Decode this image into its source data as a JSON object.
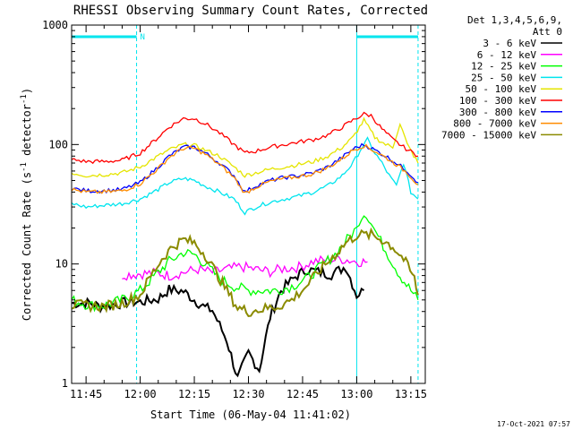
{
  "chart_data": {
    "type": "line",
    "title": "RHESSI Observing Summary Count Rates, Corrected",
    "ylabel_prefix": "Corrected Count Rate (s",
    "ylabel_sup1": "-1",
    "ylabel_mid": " detector",
    "ylabel_sup2": "-1",
    "ylabel_suffix": ")",
    "xlabel": "Start Time (06-May-04 11:41:02)",
    "footer_date": "17-Oct-2021 07:57",
    "legend_header": [
      "Det 1,3,4,5,6,9,",
      "Att 0"
    ],
    "y_scale": "log",
    "ylim": [
      1,
      1000
    ],
    "y_ticks": [
      1,
      10,
      100,
      1000
    ],
    "y_tick_labels": [
      "1",
      "10",
      "100",
      "1000"
    ],
    "xlim": [
      "11:41",
      "13:19"
    ],
    "x_ticks": [
      "11:45",
      "12:00",
      "12:15",
      "12:30",
      "12:45",
      "13:00",
      "13:15"
    ],
    "grid": false,
    "legend_position": "right",
    "annotations": {
      "bar_label": "N",
      "bar_color": "#00e5ee",
      "vlines_solid": [
        "11:41",
        "13:00"
      ],
      "vlines_dashed": [
        "11:59",
        "13:17"
      ],
      "bars": [
        [
          "11:41",
          "11:59"
        ],
        [
          "13:00",
          "13:17"
        ]
      ]
    },
    "series": [
      {
        "name": "3 - 6 keV",
        "color": "#000000",
        "points": [
          [
            "11:41",
            4.7
          ],
          [
            "11:46",
            4.7
          ],
          [
            "11:49",
            4.4
          ],
          [
            "11:53",
            4.6
          ],
          [
            "11:57",
            4.8
          ],
          [
            "12:00",
            4.8
          ],
          [
            "12:05",
            5.1
          ],
          [
            "12:08",
            6.1
          ],
          [
            "12:12",
            5.9
          ],
          [
            "12:15",
            5.0
          ],
          [
            "12:18",
            4.3
          ],
          [
            "12:20",
            4.1
          ],
          [
            "12:24",
            2.3
          ],
          [
            "12:27",
            1.1
          ],
          [
            "12:30",
            1.8
          ],
          [
            "12:33",
            1.3
          ],
          [
            "12:36",
            3.6
          ],
          [
            "12:39",
            6.0
          ],
          [
            "12:43",
            7.8
          ],
          [
            "12:46",
            9.0
          ],
          [
            "12:50",
            8.5
          ],
          [
            "12:53",
            8.2
          ],
          [
            "12:57",
            9.5
          ],
          [
            "13:00",
            5.5
          ],
          [
            "13:02",
            6.0
          ]
        ]
      },
      {
        "name": "6 - 12 keV",
        "color": "#ff00ff",
        "points": [
          [
            "11:55",
            8.1
          ],
          [
            "12:00",
            8.3
          ],
          [
            "12:05",
            8.4
          ],
          [
            "12:08",
            8.0
          ],
          [
            "12:12",
            8.5
          ],
          [
            "12:16",
            9.0
          ],
          [
            "12:20",
            8.5
          ],
          [
            "12:24",
            9.0
          ],
          [
            "12:28",
            9.5
          ],
          [
            "12:32",
            9.0
          ],
          [
            "12:36",
            8.6
          ],
          [
            "12:40",
            9.2
          ],
          [
            "12:44",
            9.4
          ],
          [
            "12:48",
            10.5
          ],
          [
            "12:52",
            10.8
          ],
          [
            "12:56",
            11.0
          ],
          [
            "13:00",
            10.5
          ],
          [
            "13:03",
            10.4
          ]
        ]
      },
      {
        "name": "12 - 25 keV",
        "color": "#00ff00",
        "points": [
          [
            "11:41",
            5.0
          ],
          [
            "11:46",
            4.5
          ],
          [
            "11:50",
            4.5
          ],
          [
            "11:55",
            5.0
          ],
          [
            "12:00",
            6.0
          ],
          [
            "12:05",
            8.5
          ],
          [
            "12:08",
            10.5
          ],
          [
            "12:12",
            12.5
          ],
          [
            "12:15",
            12.0
          ],
          [
            "12:18",
            10.0
          ],
          [
            "12:22",
            7.5
          ],
          [
            "12:26",
            6.5
          ],
          [
            "12:30",
            6.0
          ],
          [
            "12:34",
            6.0
          ],
          [
            "12:38",
            6.0
          ],
          [
            "12:42",
            6.5
          ],
          [
            "12:46",
            7.5
          ],
          [
            "12:50",
            9.5
          ],
          [
            "12:54",
            12.0
          ],
          [
            "12:58",
            17.0
          ],
          [
            "13:00",
            20.0
          ],
          [
            "13:02",
            26.0
          ],
          [
            "13:04",
            22.0
          ],
          [
            "13:08",
            13.0
          ],
          [
            "13:12",
            8.0
          ],
          [
            "13:15",
            6.0
          ],
          [
            "13:17",
            5.0
          ]
        ]
      },
      {
        "name": "25 - 50 keV",
        "color": "#00e5ee",
        "points": [
          [
            "11:41",
            32
          ],
          [
            "11:45",
            30
          ],
          [
            "11:50",
            31
          ],
          [
            "11:55",
            32
          ],
          [
            "12:00",
            35
          ],
          [
            "12:05",
            42
          ],
          [
            "12:08",
            48
          ],
          [
            "12:12",
            52
          ],
          [
            "12:15",
            50
          ],
          [
            "12:18",
            45
          ],
          [
            "12:22",
            40
          ],
          [
            "12:26",
            35
          ],
          [
            "12:29",
            27
          ],
          [
            "12:32",
            30
          ],
          [
            "12:36",
            33
          ],
          [
            "12:40",
            35
          ],
          [
            "12:44",
            37
          ],
          [
            "12:48",
            40
          ],
          [
            "12:52",
            45
          ],
          [
            "12:56",
            55
          ],
          [
            "12:59",
            70
          ],
          [
            "13:01",
            90
          ],
          [
            "13:03",
            110
          ],
          [
            "13:05",
            85
          ],
          [
            "13:07",
            70
          ],
          [
            "13:09",
            55
          ],
          [
            "13:11",
            45
          ],
          [
            "13:13",
            70
          ],
          [
            "13:15",
            40
          ],
          [
            "13:17",
            35
          ]
        ]
      },
      {
        "name": "50 - 100 keV",
        "color": "#e5e500",
        "points": [
          [
            "11:41",
            58
          ],
          [
            "11:45",
            55
          ],
          [
            "11:50",
            56
          ],
          [
            "11:55",
            58
          ],
          [
            "12:00",
            65
          ],
          [
            "12:05",
            80
          ],
          [
            "12:08",
            90
          ],
          [
            "12:12",
            100
          ],
          [
            "12:15",
            98
          ],
          [
            "12:18",
            90
          ],
          [
            "12:22",
            80
          ],
          [
            "12:26",
            65
          ],
          [
            "12:29",
            55
          ],
          [
            "12:32",
            58
          ],
          [
            "12:36",
            62
          ],
          [
            "12:40",
            65
          ],
          [
            "12:44",
            68
          ],
          [
            "12:48",
            72
          ],
          [
            "12:52",
            80
          ],
          [
            "12:56",
            95
          ],
          [
            "12:59",
            115
          ],
          [
            "13:02",
            160
          ],
          [
            "13:05",
            115
          ],
          [
            "13:08",
            100
          ],
          [
            "13:10",
            95
          ],
          [
            "13:12",
            150
          ],
          [
            "13:14",
            100
          ],
          [
            "13:17",
            70
          ]
        ]
      },
      {
        "name": "100 - 300 keV",
        "color": "#ff0000",
        "points": [
          [
            "11:41",
            75
          ],
          [
            "11:45",
            72
          ],
          [
            "11:50",
            72
          ],
          [
            "11:55",
            74
          ],
          [
            "12:00",
            85
          ],
          [
            "12:05",
            115
          ],
          [
            "12:08",
            140
          ],
          [
            "12:12",
            165
          ],
          [
            "12:15",
            165
          ],
          [
            "12:18",
            150
          ],
          [
            "12:22",
            125
          ],
          [
            "12:26",
            100
          ],
          [
            "12:29",
            85
          ],
          [
            "12:32",
            88
          ],
          [
            "12:36",
            95
          ],
          [
            "12:40",
            100
          ],
          [
            "12:44",
            105
          ],
          [
            "12:48",
            110
          ],
          [
            "12:52",
            120
          ],
          [
            "12:56",
            140
          ],
          [
            "12:59",
            160
          ],
          [
            "13:02",
            180
          ],
          [
            "13:04",
            175
          ],
          [
            "13:07",
            135
          ],
          [
            "13:10",
            110
          ],
          [
            "13:13",
            95
          ],
          [
            "13:17",
            80
          ]
        ]
      },
      {
        "name": "300 - 800 keV",
        "color": "#0000ff",
        "points": [
          [
            "11:41",
            43
          ],
          [
            "11:45",
            41
          ],
          [
            "11:50",
            41
          ],
          [
            "11:55",
            42
          ],
          [
            "12:00",
            48
          ],
          [
            "12:05",
            65
          ],
          [
            "12:08",
            80
          ],
          [
            "12:12",
            95
          ],
          [
            "12:15",
            95
          ],
          [
            "12:18",
            85
          ],
          [
            "12:22",
            70
          ],
          [
            "12:26",
            55
          ],
          [
            "12:29",
            40
          ],
          [
            "12:32",
            45
          ],
          [
            "12:36",
            50
          ],
          [
            "12:40",
            53
          ],
          [
            "12:44",
            55
          ],
          [
            "12:48",
            58
          ],
          [
            "12:52",
            65
          ],
          [
            "12:56",
            78
          ],
          [
            "12:59",
            92
          ],
          [
            "13:02",
            100
          ],
          [
            "13:05",
            90
          ],
          [
            "13:08",
            80
          ],
          [
            "13:11",
            70
          ],
          [
            "13:14",
            60
          ],
          [
            "13:17",
            48
          ]
        ]
      },
      {
        "name": "800 - 7000 keV",
        "color": "#ff8c00",
        "points": [
          [
            "11:41",
            42
          ],
          [
            "11:45",
            40
          ],
          [
            "11:50",
            40
          ],
          [
            "11:55",
            41
          ],
          [
            "12:00",
            47
          ],
          [
            "12:05",
            63
          ],
          [
            "12:08",
            78
          ],
          [
            "12:12",
            93
          ],
          [
            "12:15",
            93
          ],
          [
            "12:18",
            83
          ],
          [
            "12:22",
            68
          ],
          [
            "12:26",
            53
          ],
          [
            "12:29",
            39
          ],
          [
            "12:32",
            44
          ],
          [
            "12:36",
            49
          ],
          [
            "12:40",
            52
          ],
          [
            "12:44",
            54
          ],
          [
            "12:48",
            57
          ],
          [
            "12:52",
            64
          ],
          [
            "12:56",
            76
          ],
          [
            "12:59",
            90
          ],
          [
            "13:02",
            98
          ],
          [
            "13:05",
            88
          ],
          [
            "13:08",
            78
          ],
          [
            "13:11",
            68
          ],
          [
            "13:14",
            58
          ],
          [
            "13:17",
            46
          ]
        ]
      },
      {
        "name": "7000 - 15000 keV",
        "color": "#8b8b00",
        "points": [
          [
            "11:41",
            4.5
          ],
          [
            "11:45",
            4.5
          ],
          [
            "11:50",
            4.4
          ],
          [
            "11:55",
            4.7
          ],
          [
            "12:00",
            5.5
          ],
          [
            "12:03",
            8.0
          ],
          [
            "12:06",
            11.0
          ],
          [
            "12:09",
            14.0
          ],
          [
            "12:12",
            16.0
          ],
          [
            "12:15",
            15.0
          ],
          [
            "12:18",
            12.0
          ],
          [
            "12:21",
            8.5
          ],
          [
            "12:24",
            6.0
          ],
          [
            "12:27",
            4.3
          ],
          [
            "12:30",
            4.0
          ],
          [
            "12:34",
            4.2
          ],
          [
            "12:38",
            4.4
          ],
          [
            "12:42",
            5.0
          ],
          [
            "12:46",
            6.5
          ],
          [
            "12:50",
            9.0
          ],
          [
            "12:54",
            12.0
          ],
          [
            "12:57",
            15.0
          ],
          [
            "13:00",
            17.5
          ],
          [
            "13:04",
            17.5
          ],
          [
            "13:07",
            16.0
          ],
          [
            "13:10",
            14.0
          ],
          [
            "13:13",
            11.0
          ],
          [
            "13:16",
            7.5
          ],
          [
            "13:17",
            5.5
          ]
        ]
      }
    ]
  }
}
